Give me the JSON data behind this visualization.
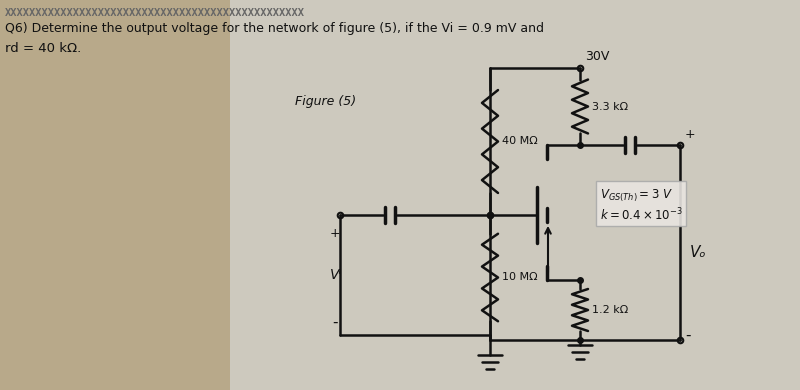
{
  "title_line1": "Q6) Determine the output voltage for the network of figure (5), if the Vi = 0.9 mV and",
  "title_line2": "rd = 40 kΩ.",
  "figure_label": "Figure (5)",
  "vdd_label": "30V",
  "r1_label": "3.3 kΩ",
  "r2_label": "40 MΩ",
  "r3_label": "10 MΩ",
  "rd_label": "1.2 kΩ",
  "vi_label": "Vᴵ",
  "vo_label": "Vₒ",
  "bg_color": "#cdc9be",
  "text_color": "#111111",
  "circuit_color": "#111111",
  "xxx_pattern": "XXXXXXXXXXXXXXXXXXXXXXXXXXXXXXXXXXXXXXXXXXXXXXXX"
}
